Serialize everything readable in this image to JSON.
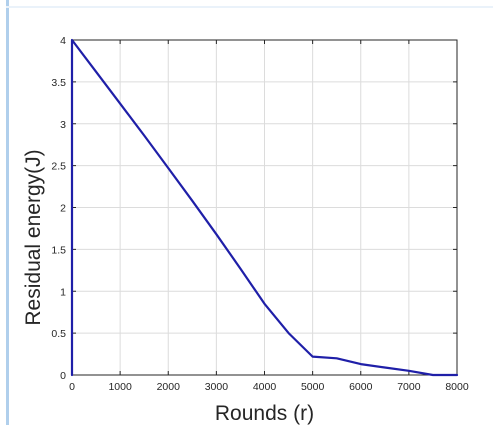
{
  "chart_data": {
    "type": "line",
    "title": "",
    "xlabel": "Rounds (r)",
    "ylabel": "Residual energy(J)",
    "xlim": [
      0,
      8000
    ],
    "ylim": [
      0,
      4
    ],
    "xticks": [
      0,
      1000,
      2000,
      3000,
      4000,
      5000,
      6000,
      7000,
      8000
    ],
    "xtick_labels": [
      "0",
      "1000",
      "2000",
      "3000",
      "4000",
      "5000",
      "6000",
      "7000",
      "8000"
    ],
    "yticks": [
      0,
      0.5,
      1,
      1.5,
      2,
      2.5,
      3,
      3.5,
      4
    ],
    "ytick_labels": [
      "0",
      "0.5",
      "1",
      "1.5",
      "2",
      "2.5",
      "3",
      "3.5",
      "4"
    ],
    "grid": true,
    "series": [
      {
        "color": "#1f1fa8",
        "x": [
          0,
          0,
          500,
          1000,
          1500,
          2000,
          2500,
          3000,
          3500,
          4000,
          4500,
          5000,
          5500,
          6000,
          6500,
          7000,
          7500,
          8000
        ],
        "y": [
          0,
          4,
          3.62,
          3.24,
          2.86,
          2.47,
          2.08,
          1.68,
          1.27,
          0.85,
          0.5,
          0.22,
          0.2,
          0.13,
          0.09,
          0.05,
          0.0,
          0.0
        ]
      }
    ]
  }
}
